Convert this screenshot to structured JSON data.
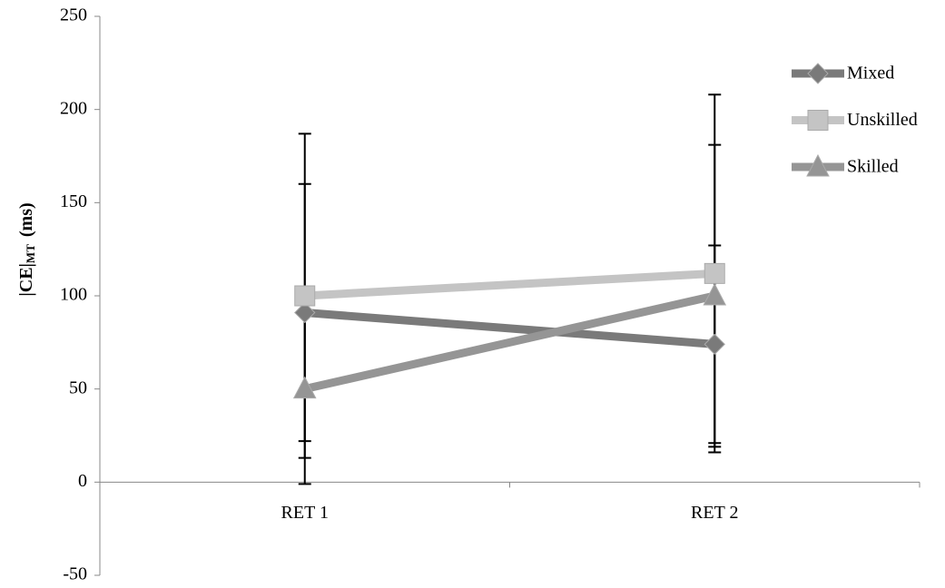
{
  "chart_data": {
    "type": "line",
    "y_label": {
      "main": "|CE|",
      "sub": "MT",
      "unit": "(ms)"
    },
    "categories": [
      "RET 1",
      "RET 2"
    ],
    "series": [
      {
        "name": "Mixed",
        "color": "#7a7a7a",
        "marker": "diamond",
        "values": [
          91,
          74
        ],
        "errors": [
          69,
          53
        ]
      },
      {
        "name": "Unskilled",
        "color": "#c4c4c4",
        "marker": "square",
        "values": [
          100,
          112
        ],
        "errors": [
          87,
          96
        ]
      },
      {
        "name": "Skilled",
        "color": "#959595",
        "marker": "triangle",
        "values": [
          50,
          100
        ],
        "errors": [
          51,
          81
        ]
      }
    ],
    "ylim": [
      -50,
      250
    ],
    "yticks": [
      -50,
      0,
      50,
      100,
      150,
      200,
      250
    ],
    "legend": "top-right"
  }
}
